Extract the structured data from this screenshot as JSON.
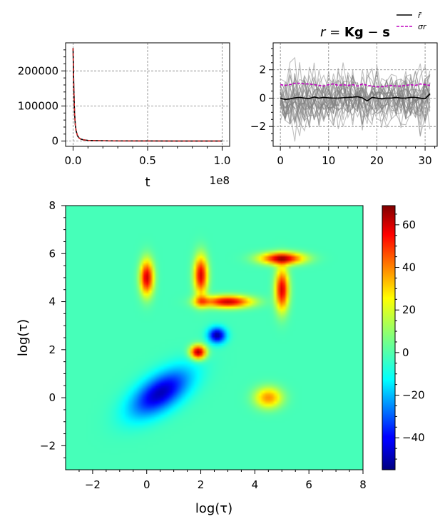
{
  "chart_data": [
    {
      "type": "line",
      "panel": "top-left",
      "xlabel": "t",
      "ylabel": "",
      "x_offset_text": "1e8",
      "xlim": [
        -0.05,
        1.05
      ],
      "ylim": [
        -15000,
        280000
      ],
      "x_ticks": [
        0.0,
        0.5,
        1.0
      ],
      "x_tick_labels": [
        "0.0",
        "0.5",
        "1.0"
      ],
      "y_ticks": [
        0,
        100000,
        200000
      ],
      "y_tick_labels": [
        "0",
        "100000",
        "200000"
      ],
      "grid": true,
      "series": [
        {
          "color": "#000000",
          "style": "solid",
          "x": [
            0.0,
            0.005,
            0.01,
            0.015,
            0.02,
            0.03,
            0.04,
            0.05,
            0.07,
            0.1,
            0.15,
            0.2,
            0.3,
            0.5,
            0.7,
            1.0
          ],
          "y": [
            265000,
            150000,
            80000,
            47000,
            30000,
            15000,
            9000,
            6000,
            3500,
            2000,
            1200,
            800,
            500,
            300,
            200,
            150
          ]
        },
        {
          "color": "#d62728",
          "style": "dashed",
          "x": [
            0.0,
            0.005,
            0.01,
            0.015,
            0.02,
            0.03,
            0.04,
            0.05,
            0.07,
            0.1,
            0.15,
            0.2,
            0.3,
            0.5,
            0.7,
            1.0
          ],
          "y": [
            265000,
            150000,
            80000,
            47000,
            30000,
            15000,
            9000,
            6000,
            3500,
            2000,
            1200,
            800,
            500,
            300,
            200,
            150
          ]
        }
      ]
    },
    {
      "type": "line",
      "panel": "top-right",
      "title": "r = Kg − s",
      "title_parts": {
        "lhs": "r",
        "eq": " = ",
        "K": "K",
        "g": "g",
        "minus": " − ",
        "s": "s"
      },
      "xlim": [
        -1.5,
        32.5
      ],
      "ylim": [
        -3.4,
        3.9
      ],
      "x_ticks": [
        0,
        10,
        20,
        30
      ],
      "x_tick_labels": [
        "0",
        "10",
        "20",
        "30"
      ],
      "y_ticks": [
        -2,
        0,
        2
      ],
      "y_tick_labels": [
        "−2",
        "0",
        "2"
      ],
      "grid": true,
      "legend_position": "top-right",
      "legend": [
        {
          "label": "r̄",
          "color": "#000000",
          "style": "solid"
        },
        {
          "label": "σr",
          "color": "#bf00bf",
          "style": "dashed"
        }
      ],
      "mean_series": {
        "color": "#000000",
        "x": [
          0,
          1,
          2,
          3,
          4,
          5,
          6,
          7,
          8,
          9,
          10,
          11,
          12,
          13,
          14,
          15,
          16,
          17,
          18,
          19,
          20,
          21,
          22,
          23,
          24,
          25,
          26,
          27,
          28,
          29,
          30,
          31
        ],
        "y": [
          0.0,
          -0.1,
          -0.05,
          0.02,
          0.05,
          0.0,
          -0.03,
          0.08,
          0.0,
          0.05,
          0.02,
          0.0,
          0.0,
          0.03,
          0.05,
          0.07,
          0.1,
          0.02,
          -0.2,
          0.05,
          0.0,
          -0.05,
          0.0,
          0.0,
          0.05,
          0.0,
          0.0,
          0.05,
          0.05,
          0.0,
          -0.05,
          0.3
        ]
      },
      "sigma_series": {
        "color": "#bf00bf",
        "x": [
          0,
          1,
          2,
          3,
          4,
          5,
          6,
          7,
          8,
          9,
          10,
          11,
          12,
          13,
          14,
          15,
          16,
          17,
          18,
          19,
          20,
          21,
          22,
          23,
          24,
          25,
          26,
          27,
          28,
          29,
          30,
          31
        ],
        "y": [
          0.95,
          0.9,
          0.95,
          1.05,
          1.05,
          1.0,
          1.0,
          0.95,
          0.9,
          0.85,
          0.95,
          1.0,
          0.9,
          0.95,
          0.9,
          0.95,
          0.85,
          1.0,
          0.9,
          0.85,
          0.8,
          0.8,
          0.85,
          0.9,
          0.85,
          0.85,
          0.9,
          0.95,
          0.9,
          1.0,
          0.95,
          0.9
        ]
      },
      "sample_count": 30,
      "sample_color": "#808080"
    },
    {
      "type": "heatmap",
      "panel": "bottom",
      "xlabel": "log(τ)",
      "ylabel": "log(τ)",
      "xlim": [
        -3,
        8
      ],
      "ylim": [
        -3,
        8
      ],
      "x_ticks": [
        -2,
        0,
        2,
        4,
        6,
        8
      ],
      "x_tick_labels": [
        "−2",
        "0",
        "2",
        "4",
        "6",
        "8"
      ],
      "y_ticks": [
        -2,
        0,
        2,
        4,
        6,
        8
      ],
      "y_tick_labels": [
        "−2",
        "0",
        "2",
        "4",
        "6",
        "8"
      ],
      "colormap": "jet",
      "vmin": -55,
      "vmax": 69,
      "colorbar_ticks": [
        -40,
        -20,
        0,
        20,
        40,
        60
      ],
      "colorbar_tick_labels": [
        "−40",
        "−20",
        "0",
        "20",
        "40",
        "60"
      ],
      "features": [
        {
          "shape": "gaussian",
          "cx": 0.0,
          "cy": 5.0,
          "sx": 0.17,
          "sy": 0.5,
          "amp": 60
        },
        {
          "shape": "gaussian",
          "cx": 2.0,
          "cy": 5.1,
          "sx": 0.17,
          "sy": 0.55,
          "amp": 58
        },
        {
          "shape": "gaussian",
          "cx": 3.0,
          "cy": 4.0,
          "sx": 0.6,
          "sy": 0.17,
          "amp": 60
        },
        {
          "shape": "gaussian",
          "cx": 2.0,
          "cy": 4.0,
          "sx": 0.2,
          "sy": 0.17,
          "amp": 25
        },
        {
          "shape": "gaussian",
          "cx": 5.0,
          "cy": 5.8,
          "sx": 0.55,
          "sy": 0.17,
          "amp": 62
        },
        {
          "shape": "gaussian",
          "cx": 5.0,
          "cy": 4.5,
          "sx": 0.17,
          "sy": 0.6,
          "amp": 58
        },
        {
          "shape": "gaussian",
          "cx": 1.9,
          "cy": 1.9,
          "sx": 0.2,
          "sy": 0.2,
          "amp": 66
        },
        {
          "shape": "gaussian",
          "cx": 2.6,
          "cy": 2.6,
          "sx": 0.22,
          "sy": 0.22,
          "amp": -52
        },
        {
          "shape": "gaussian",
          "cx": 4.5,
          "cy": 0.0,
          "sx": 0.35,
          "sy": 0.3,
          "amp": 36
        },
        {
          "shape": "ellipse-gaussian",
          "cx": 0.5,
          "cy": 0.2,
          "s_major": 0.9,
          "s_minor": 0.45,
          "angle_deg": -40,
          "amp": -48
        }
      ]
    }
  ]
}
